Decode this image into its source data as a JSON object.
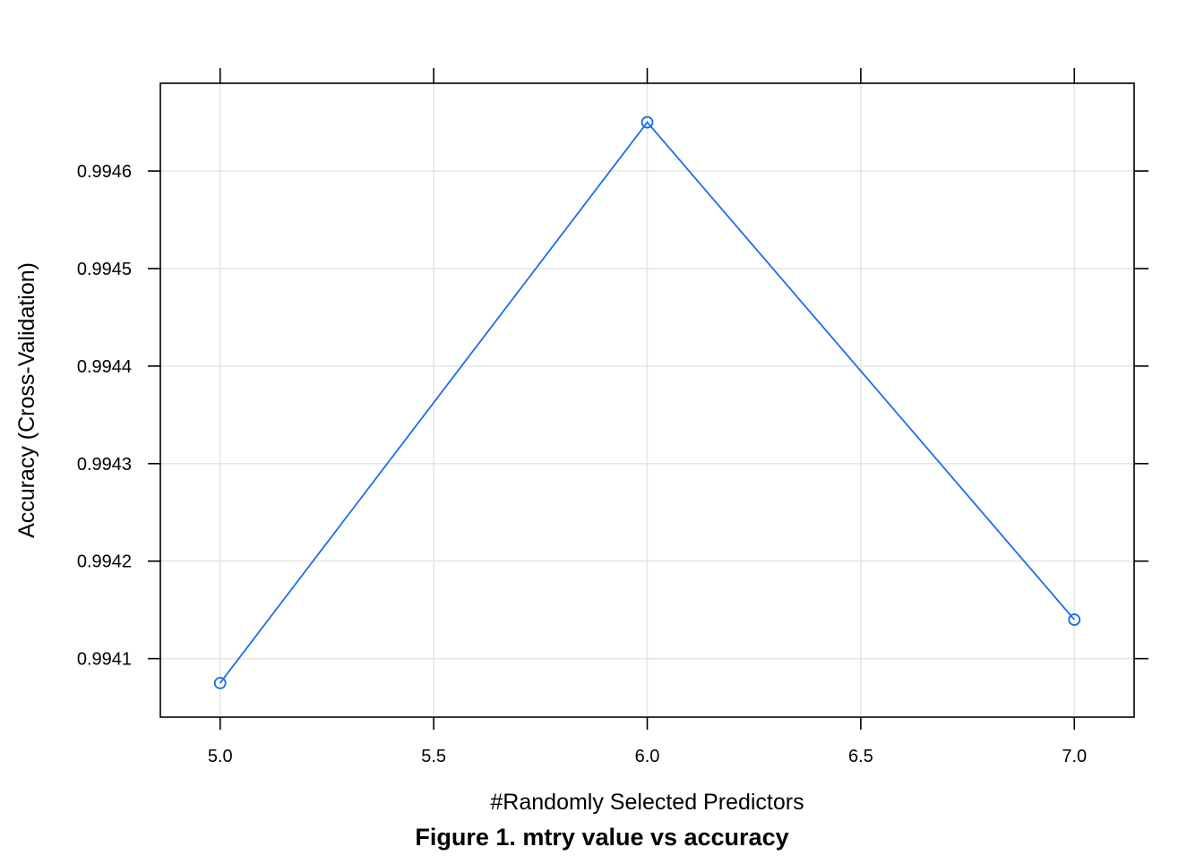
{
  "chart_data": {
    "type": "line",
    "title": "",
    "xlabel": "#Randomly Selected Predictors",
    "ylabel": "Accuracy (Cross-Validation)",
    "caption": "Figure 1. mtry value vs accuracy",
    "x": [
      5,
      6,
      7
    ],
    "series": [
      {
        "values": [
          0.994075,
          0.99465,
          0.99414
        ],
        "color": "#1a6eed",
        "marker": "open-circle"
      }
    ],
    "xticks": [
      "5.0",
      "5.5",
      "6.0",
      "6.5",
      "7.0"
    ],
    "yticks": [
      "0.9941",
      "0.9942",
      "0.9943",
      "0.9944",
      "0.9945",
      "0.9946"
    ],
    "xlim": [
      4.86,
      7.14
    ],
    "ylim": [
      0.99404,
      0.99469
    ],
    "grid": true,
    "legend": "none",
    "colors": {
      "series": "#1a6eed",
      "grid": "#e6e6e6",
      "frame": "#000000"
    }
  }
}
